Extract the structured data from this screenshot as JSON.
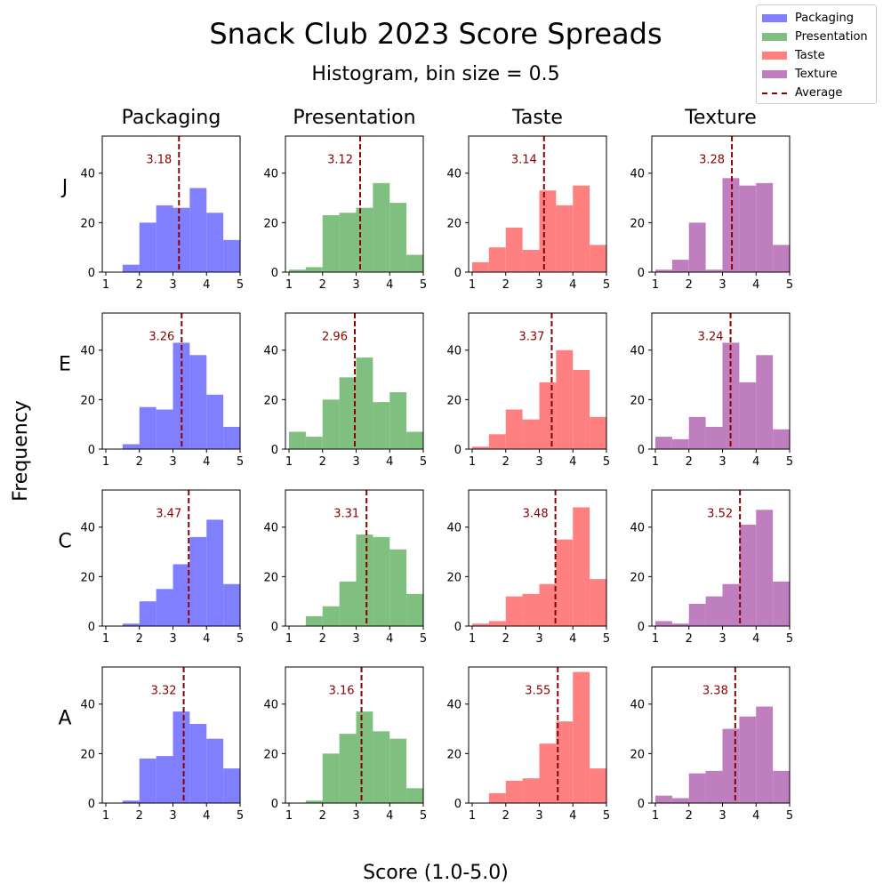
{
  "chart_data": {
    "type": "bar",
    "title": "Snack Club 2023 Score Spreads",
    "subtitle": "Histogram, bin size = 0.5",
    "xlabel": "Score (1.0-5.0)",
    "ylabel": "Frequency",
    "xlim": [
      1,
      5
    ],
    "ylim": [
      0,
      55
    ],
    "x_ticks": [
      "1",
      "2",
      "3",
      "4",
      "5"
    ],
    "y_ticks": [
      "0",
      "20",
      "40"
    ],
    "bin_edges": [
      1.0,
      1.5,
      2.0,
      2.5,
      3.0,
      3.5,
      4.0,
      4.5,
      5.0
    ],
    "legend_position": "top-right",
    "columns": [
      {
        "name": "Packaging",
        "color": "#8080ff"
      },
      {
        "name": "Presentation",
        "color": "#7fbf7f"
      },
      {
        "name": "Taste",
        "color": "#ff8080"
      },
      {
        "name": "Texture",
        "color": "#bf7fbf"
      }
    ],
    "average_label": "Average",
    "average_color": "#8b0000",
    "rows": [
      {
        "name": "J",
        "panels": [
          {
            "counts": [
              0,
              3,
              20,
              27,
              26,
              34,
              24,
              13
            ],
            "average": 3.18,
            "average_label": "3.18"
          },
          {
            "counts": [
              1,
              2,
              23,
              24,
              26,
              36,
              28,
              7
            ],
            "average": 3.12,
            "average_label": "3.12"
          },
          {
            "counts": [
              4,
              10,
              18,
              9,
              33,
              27,
              35,
              11
            ],
            "average": 3.14,
            "average_label": "3.14"
          },
          {
            "counts": [
              1,
              5,
              20,
              1,
              38,
              35,
              36,
              11
            ],
            "average": 3.28,
            "average_label": "3.28"
          }
        ]
      },
      {
        "name": "E",
        "panels": [
          {
            "counts": [
              0,
              2,
              17,
              16,
              43,
              38,
              22,
              9
            ],
            "average": 3.26,
            "average_label": "3.26"
          },
          {
            "counts": [
              7,
              5,
              20,
              29,
              37,
              19,
              23,
              7
            ],
            "average": 2.96,
            "average_label": "2.96"
          },
          {
            "counts": [
              1,
              6,
              16,
              12,
              27,
              40,
              32,
              13
            ],
            "average": 3.37,
            "average_label": "3.37"
          },
          {
            "counts": [
              5,
              4,
              13,
              9,
              43,
              27,
              38,
              8
            ],
            "average": 3.24,
            "average_label": "3.24"
          }
        ]
      },
      {
        "name": "C",
        "panels": [
          {
            "counts": [
              0,
              1,
              10,
              15,
              25,
              36,
              43,
              17
            ],
            "average": 3.47,
            "average_label": "3.47"
          },
          {
            "counts": [
              0,
              4,
              8,
              18,
              37,
              36,
              31,
              13
            ],
            "average": 3.31,
            "average_label": "3.31"
          },
          {
            "counts": [
              1,
              2,
              12,
              13,
              17,
              35,
              48,
              19
            ],
            "average": 3.48,
            "average_label": "3.48"
          },
          {
            "counts": [
              2,
              1,
              9,
              12,
              17,
              41,
              47,
              18
            ],
            "average": 3.52,
            "average_label": "3.52"
          }
        ]
      },
      {
        "name": "A",
        "panels": [
          {
            "counts": [
              0,
              1,
              18,
              19,
              37,
              32,
              26,
              14
            ],
            "average": 3.32,
            "average_label": "3.32"
          },
          {
            "counts": [
              0,
              1,
              20,
              28,
              37,
              29,
              26,
              6
            ],
            "average": 3.16,
            "average_label": "3.16"
          },
          {
            "counts": [
              0,
              4,
              9,
              10,
              24,
              33,
              53,
              14
            ],
            "average": 3.55,
            "average_label": "3.55"
          },
          {
            "counts": [
              3,
              2,
              12,
              13,
              30,
              35,
              39,
              13
            ],
            "average": 3.38,
            "average_label": "3.38"
          }
        ]
      }
    ]
  }
}
